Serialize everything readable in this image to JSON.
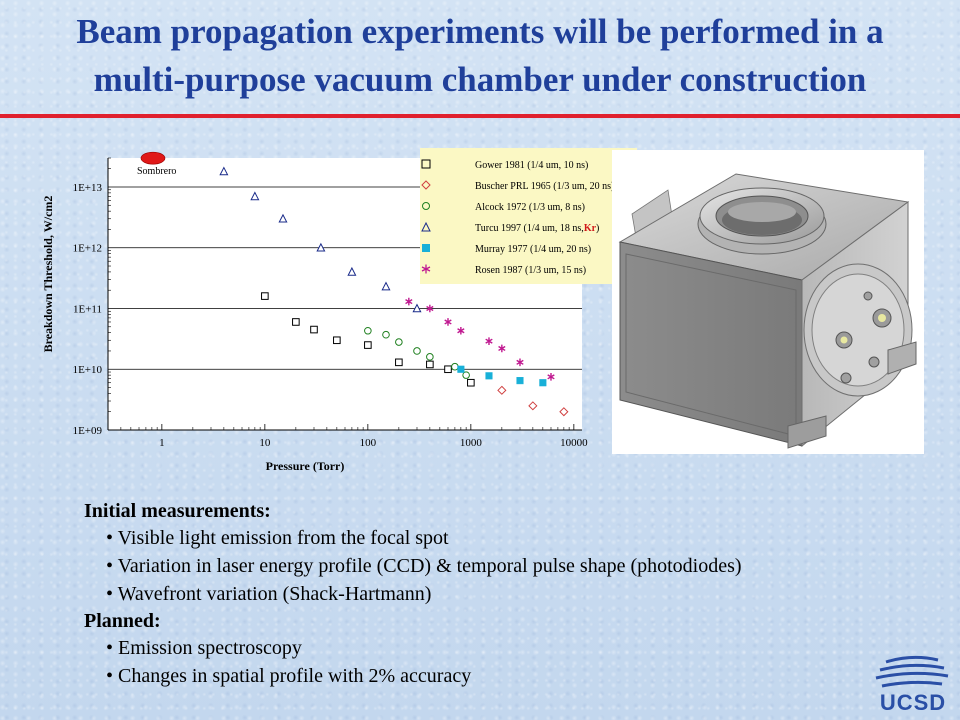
{
  "slide": {
    "title_line1": "Beam propagation experiments will be performed in a",
    "title_line2": "multi-purpose vacuum chamber under construction",
    "accent_color": "#e0202e",
    "title_color": "#1f3f9a"
  },
  "chart_data": {
    "type": "scatter",
    "xlabel": "Pressure (Torr)",
    "ylabel": "Breakdown Threshold, W/cm2",
    "x_scale": "log",
    "y_scale": "log",
    "xlim": [
      0.3,
      12000
    ],
    "ylim": [
      1000000000.0,
      30000000000000.0
    ],
    "x_ticks": [
      {
        "value": 1,
        "label": "1"
      },
      {
        "value": 10,
        "label": "10"
      },
      {
        "value": 100,
        "label": "100"
      },
      {
        "value": 1000,
        "label": "1000"
      },
      {
        "value": 10000,
        "label": "10000"
      }
    ],
    "y_ticks": [
      {
        "value": 1000000000.0,
        "label": "1E+09"
      },
      {
        "value": 10000000000.0,
        "label": "1E+10"
      },
      {
        "value": 100000000000.0,
        "label": "1E+11"
      },
      {
        "value": 1000000000000.0,
        "label": "1E+12"
      },
      {
        "value": 10000000000000.0,
        "label": "1E+13"
      }
    ],
    "grid": "horizontal major lines",
    "legend_position": "top-right",
    "annotation": {
      "text": "Sombrero",
      "x": 0.75,
      "y": 22000000000000.0
    },
    "series": [
      {
        "name": "Gower 1981 (1/4 um, 10 ns)",
        "marker": "square-open",
        "color": "#000000",
        "points": [
          [
            10,
            160000000000.0
          ],
          [
            20,
            60000000000.0
          ],
          [
            30,
            45000000000.0
          ],
          [
            50,
            30000000000.0
          ],
          [
            100,
            25000000000.0
          ],
          [
            200,
            13000000000.0
          ],
          [
            400,
            12000000000.0
          ],
          [
            600,
            10000000000.0
          ],
          [
            1000,
            6000000000.0
          ]
        ]
      },
      {
        "name": "Buscher PRL 1965 (1/3 um, 20 ns)",
        "marker": "diamond-open",
        "color": "#d04040",
        "points": [
          [
            2000,
            4500000000.0
          ],
          [
            4000,
            2500000000.0
          ],
          [
            8000,
            2000000000.0
          ]
        ]
      },
      {
        "name": "Alcock 1972 (1/3 um, 8 ns)",
        "marker": "circle-open",
        "color": "#208020",
        "points": [
          [
            100,
            43000000000.0
          ],
          [
            150,
            37000000000.0
          ],
          [
            200,
            28000000000.0
          ],
          [
            300,
            20000000000.0
          ],
          [
            400,
            16000000000.0
          ],
          [
            700,
            11000000000.0
          ],
          [
            900,
            8000000000.0
          ]
        ]
      },
      {
        "name": "Turcu 1997 (1/4 um, 18 ns, Kr)",
        "name_main": "Turcu 1997 (1/4 um, 18 ns,",
        "name_kr": "Kr",
        "name_end": ")",
        "marker": "triangle-open",
        "color": "#1a2b8a",
        "points": [
          [
            4,
            18000000000000.0
          ],
          [
            8,
            7000000000000.0
          ],
          [
            15,
            3000000000000.0
          ],
          [
            35,
            1000000000000.0
          ],
          [
            70,
            400000000000.0
          ],
          [
            150,
            230000000000.0
          ],
          [
            300,
            100000000000.0
          ]
        ]
      },
      {
        "name": "Murray 1977 (1/4 um, 20 ns)",
        "marker": "square-filled",
        "color": "#18b0d8",
        "points": [
          [
            800,
            10000000000.0
          ],
          [
            1500,
            7800000000.0
          ],
          [
            3000,
            6500000000.0
          ],
          [
            5000,
            6000000000.0
          ]
        ]
      },
      {
        "name": "Rosen 1987 (1/3 um, 15 ns)",
        "marker": "star",
        "color": "#c01890",
        "points": [
          [
            250,
            130000000000.0
          ],
          [
            400,
            100000000000.0
          ],
          [
            600,
            60000000000.0
          ],
          [
            800,
            43000000000.0
          ],
          [
            1500,
            29000000000.0
          ],
          [
            2000,
            22000000000.0
          ],
          [
            3000,
            13000000000.0
          ],
          [
            6000,
            7500000000.0
          ]
        ]
      }
    ]
  },
  "figure": {
    "image_name": "vacuum-chamber-render"
  },
  "notes": {
    "initial_heading": "Initial measurements:",
    "initial_items": [
      "• Visible light emission from the focal spot",
      "• Variation in laser energy profile (CCD) & temporal pulse shape (photodiodes)",
      "• Wavefront variation (Shack-Hartmann)"
    ],
    "planned_heading": "Planned:",
    "planned_items": [
      "• Emission spectroscopy",
      "• Changes in spatial profile with 2% accuracy"
    ]
  },
  "logo": {
    "text": "UCSD",
    "color": "#2a4fa6"
  }
}
